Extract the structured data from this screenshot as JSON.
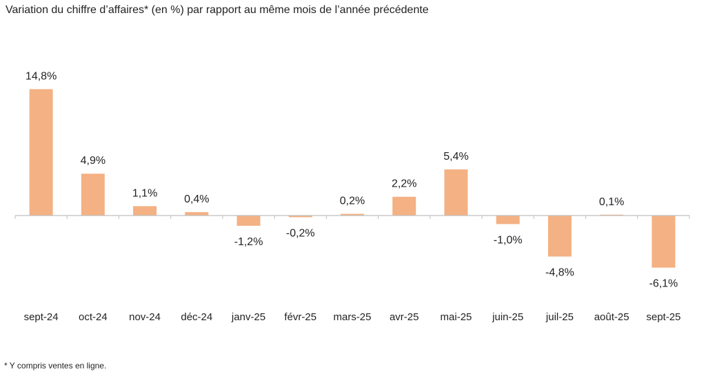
{
  "chart_data": {
    "type": "bar",
    "title": "Variation du chiffre d’affaires* (en %) par rapport au même mois de l’année précédente",
    "categories": [
      "sept-24",
      "oct-24",
      "nov-24",
      "déc-24",
      "janv-25",
      "févr-25",
      "mars-25",
      "avr-25",
      "mai-25",
      "juin-25",
      "juil-25",
      "août-25",
      "sept-25"
    ],
    "values": [
      14.8,
      4.9,
      1.1,
      0.4,
      -1.2,
      -0.2,
      0.2,
      2.2,
      5.4,
      -1.0,
      -4.8,
      0.1,
      -6.1
    ],
    "data_labels": [
      "14,8%",
      "4,9%",
      "1,1%",
      "0,4%",
      "-1,2%",
      "-0,2%",
      "0,2%",
      "2,2%",
      "5,4%",
      "-1,0%",
      "-4,8%",
      "0,1%",
      "-6,1%"
    ],
    "xlabel": "",
    "ylabel": "",
    "grid": false,
    "bar_color": "#F4B183",
    "axis_color": "#BFBFBF"
  },
  "footnote": "* Y compris ventes en ligne."
}
